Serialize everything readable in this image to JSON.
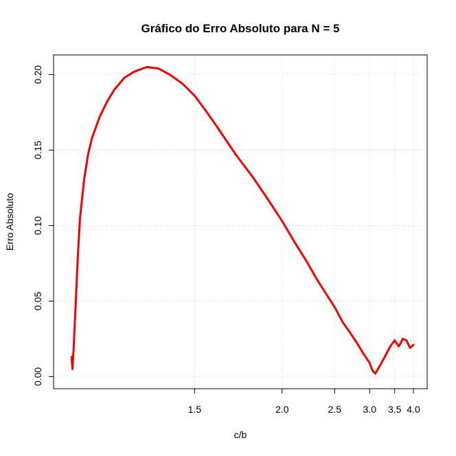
{
  "chart_data": {
    "type": "line",
    "title": "Gráfico do Erro Absoluto para N = 5",
    "xlabel": "c/b",
    "ylabel": "Erro Absoluto",
    "x_scale": "reciprocal",
    "xlim": [
      1.1,
      4.0
    ],
    "ylim": [
      -0.008,
      0.213
    ],
    "x_ticks": [
      1.5,
      2.0,
      2.5,
      3.0,
      3.5,
      4.0
    ],
    "x_tick_labels": [
      "1.5",
      "2.0",
      "2.5",
      "3.0",
      "3.5",
      "4.0"
    ],
    "y_ticks": [
      0.0,
      0.05,
      0.1,
      0.15,
      0.2
    ],
    "y_tick_labels": [
      "0.00",
      "0.05",
      "0.10",
      "0.15",
      "0.20"
    ],
    "grid": true,
    "series": [
      {
        "color": "#ee0000",
        "x": [
          1.11,
          1.112,
          1.115,
          1.12,
          1.125,
          1.13,
          1.14,
          1.15,
          1.16,
          1.18,
          1.2,
          1.22,
          1.25,
          1.28,
          1.32,
          1.36,
          1.4,
          1.45,
          1.5,
          1.55,
          1.6,
          1.7,
          1.8,
          1.9,
          2.0,
          2.1,
          2.2,
          2.3,
          2.4,
          2.5,
          2.6,
          2.7,
          2.8,
          2.9,
          3.0,
          3.05,
          3.1,
          3.2,
          3.3,
          3.4,
          3.5,
          3.6,
          3.7,
          3.8,
          3.9,
          4.0
        ],
        "y": [
          0.013,
          0.005,
          0.02,
          0.05,
          0.08,
          0.105,
          0.13,
          0.147,
          0.158,
          0.172,
          0.182,
          0.19,
          0.198,
          0.202,
          0.205,
          0.204,
          0.2,
          0.194,
          0.186,
          0.176,
          0.166,
          0.147,
          0.132,
          0.117,
          0.103,
          0.089,
          0.077,
          0.065,
          0.055,
          0.046,
          0.036,
          0.029,
          0.022,
          0.015,
          0.009,
          0.004,
          0.002,
          0.008,
          0.014,
          0.02,
          0.024,
          0.02,
          0.025,
          0.024,
          0.019,
          0.021
        ]
      }
    ]
  }
}
